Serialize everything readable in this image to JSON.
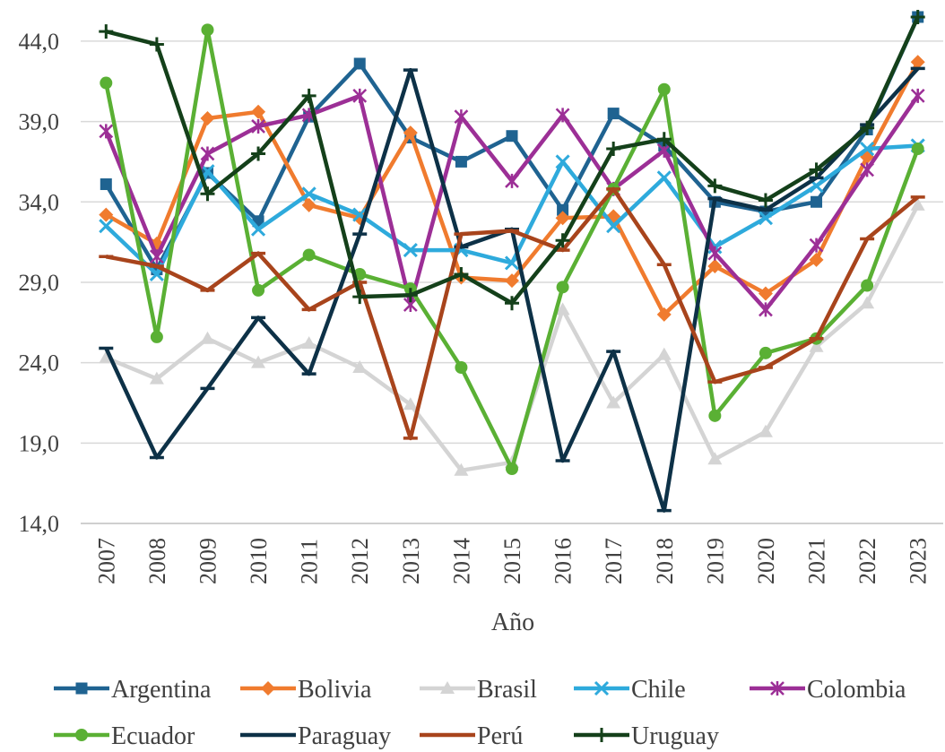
{
  "chart_data": {
    "type": "line",
    "title": "",
    "xlabel": "Año",
    "ylabel": "",
    "x": [
      "2007",
      "2008",
      "2009",
      "2010",
      "2011",
      "2012",
      "2013",
      "2014",
      "2015",
      "2016",
      "2017",
      "2018",
      "2019",
      "2020",
      "2021",
      "2022",
      "2023"
    ],
    "ylim": [
      14.0,
      46.0
    ],
    "yticks": [
      "14,0",
      "19,0",
      "24,0",
      "29,0",
      "34,0",
      "39,0",
      "44,0"
    ],
    "grid": "horizontal",
    "legend_position": "bottom",
    "series": [
      {
        "name": "Argentina",
        "color": "#1f6391",
        "marker": "square",
        "values": [
          35.1,
          29.8,
          35.8,
          32.8,
          39.3,
          42.6,
          38.0,
          36.5,
          38.1,
          33.5,
          39.5,
          37.5,
          34.0,
          33.4,
          34.0,
          38.5,
          45.5
        ]
      },
      {
        "name": "Bolivia",
        "color": "#f07b2e",
        "marker": "diamond",
        "values": [
          33.2,
          31.4,
          39.2,
          39.6,
          33.8,
          33.0,
          38.3,
          29.3,
          29.1,
          33.0,
          33.1,
          27.0,
          30.0,
          28.3,
          30.4,
          36.8,
          42.7
        ]
      },
      {
        "name": "Brasil",
        "color": "#d4d4d4",
        "marker": "triangle",
        "values": [
          24.3,
          23.0,
          25.5,
          24.0,
          25.2,
          23.7,
          21.4,
          17.3,
          17.8,
          27.3,
          21.5,
          24.5,
          18.0,
          19.7,
          25.0,
          27.7,
          33.8
        ]
      },
      {
        "name": "Chile",
        "color": "#2eaadc",
        "marker": "x",
        "values": [
          32.5,
          29.5,
          35.9,
          32.3,
          34.5,
          33.2,
          31.0,
          31.0,
          30.2,
          36.5,
          32.5,
          35.5,
          31.2,
          33.0,
          35.0,
          37.3,
          37.5
        ]
      },
      {
        "name": "Colombia",
        "color": "#9c2f96",
        "marker": "asterisk",
        "values": [
          38.4,
          30.6,
          37.0,
          38.7,
          39.4,
          40.6,
          27.6,
          39.3,
          35.3,
          39.4,
          34.8,
          37.2,
          30.8,
          27.3,
          31.3,
          36.0,
          40.6
        ]
      },
      {
        "name": "Ecuador",
        "color": "#5ab034",
        "marker": "circle",
        "values": [
          41.4,
          25.6,
          44.7,
          28.5,
          30.7,
          29.5,
          28.6,
          23.7,
          17.4,
          28.7,
          34.8,
          41.0,
          20.7,
          24.6,
          25.5,
          28.8,
          37.3
        ]
      },
      {
        "name": "Paraguay",
        "color": "#0d3147",
        "marker": "dash",
        "values": [
          24.9,
          18.1,
          22.4,
          26.8,
          23.3,
          32.0,
          42.2,
          31.2,
          32.3,
          17.9,
          24.7,
          14.8,
          34.2,
          33.5,
          35.5,
          38.8,
          42.3
        ]
      },
      {
        "name": "Perú",
        "color": "#a8441c",
        "marker": "dash",
        "values": [
          30.6,
          30.0,
          28.5,
          30.8,
          27.3,
          29.0,
          19.3,
          32.0,
          32.2,
          31.0,
          34.8,
          30.1,
          22.8,
          23.7,
          25.5,
          31.7,
          34.3
        ]
      },
      {
        "name": "Uruguay",
        "color": "#14401a",
        "marker": "plus",
        "values": [
          44.6,
          43.8,
          34.5,
          37.0,
          40.6,
          28.1,
          28.2,
          29.5,
          27.7,
          31.6,
          37.3,
          37.9,
          35.0,
          34.1,
          36.0,
          38.6,
          45.5
        ]
      }
    ]
  }
}
